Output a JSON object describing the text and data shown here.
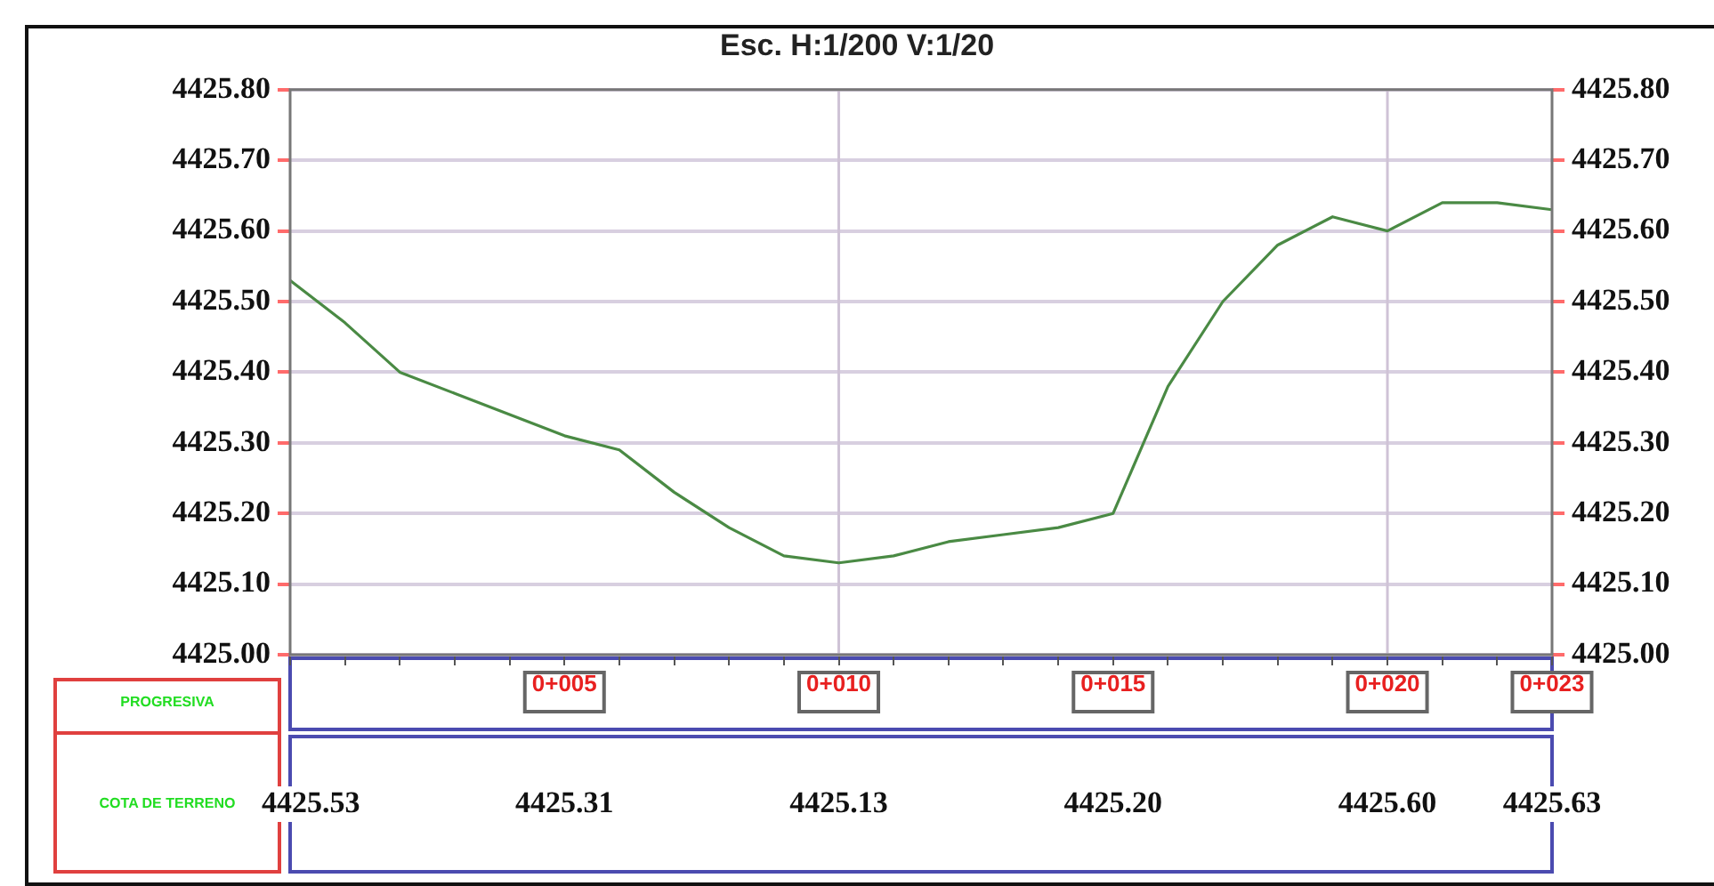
{
  "chart_data": {
    "type": "line",
    "title": "Esc. H:1/200 V:1/20",
    "categories": [
      null,
      null,
      null,
      null,
      null,
      "0+005",
      null,
      null,
      null,
      null,
      "0+010",
      null,
      null,
      null,
      null,
      "0+015",
      null,
      null,
      null,
      null,
      "0+020",
      null,
      null,
      "0+023"
    ],
    "series": [
      {
        "color": "#4a8a44",
        "values": [
          4425.53,
          4425.47,
          4425.4,
          4425.37,
          4425.34,
          4425.31,
          4425.29,
          4425.23,
          4425.18,
          4425.14,
          4425.13,
          4425.14,
          4425.16,
          4425.17,
          4425.18,
          4425.2,
          4425.38,
          4425.5,
          4425.58,
          4425.62,
          4425.6,
          4425.64,
          4425.64,
          4425.63
        ],
        "value_labels": [
          "4425.53",
          null,
          null,
          null,
          null,
          "4425.31",
          null,
          null,
          null,
          null,
          "4425.13",
          null,
          null,
          null,
          null,
          "4425.20",
          null,
          null,
          null,
          null,
          "4425.60",
          null,
          null,
          "4425.63"
        ]
      }
    ],
    "ylim": [
      4425.0,
      4425.8
    ],
    "yticks": [
      {
        "value": 4425.0,
        "label": "4425.00"
      },
      {
        "value": 4425.1,
        "label": "4425.10"
      },
      {
        "value": 4425.2,
        "label": "4425.20"
      },
      {
        "value": 4425.3,
        "label": "4425.30"
      },
      {
        "value": 4425.4,
        "label": "4425.40"
      },
      {
        "value": 4425.5,
        "label": "4425.50"
      },
      {
        "value": 4425.6,
        "label": "4425.60"
      },
      {
        "value": 4425.7,
        "label": "4425.70"
      },
      {
        "value": 4425.8,
        "label": "4425.80"
      }
    ],
    "y2lim": [
      4425.0,
      4425.8
    ],
    "y2ticks": [
      {
        "value": 4425.0,
        "label": "4425.00"
      },
      {
        "value": 4425.1,
        "label": "4425.10"
      },
      {
        "value": 4425.2,
        "label": "4425.20"
      },
      {
        "value": 4425.3,
        "label": "4425.30"
      },
      {
        "value": 4425.4,
        "label": "4425.40"
      },
      {
        "value": 4425.5,
        "label": "4425.50"
      },
      {
        "value": 4425.6,
        "label": "4425.60"
      },
      {
        "value": 4425.7,
        "label": "4425.70"
      },
      {
        "value": 4425.8,
        "label": "4425.80"
      }
    ],
    "ref_lines": [
      {
        "axis": "x",
        "value": "0+010",
        "color": "#cfc3d6"
      },
      {
        "axis": "x",
        "value": "0+020",
        "color": "#cfc3d6"
      }
    ],
    "annotations": [
      "PROGRESIVA",
      "COTA DE TERRENO"
    ],
    "grid": "y",
    "legend": false,
    "marker": "none",
    "line_style": "solid"
  }
}
